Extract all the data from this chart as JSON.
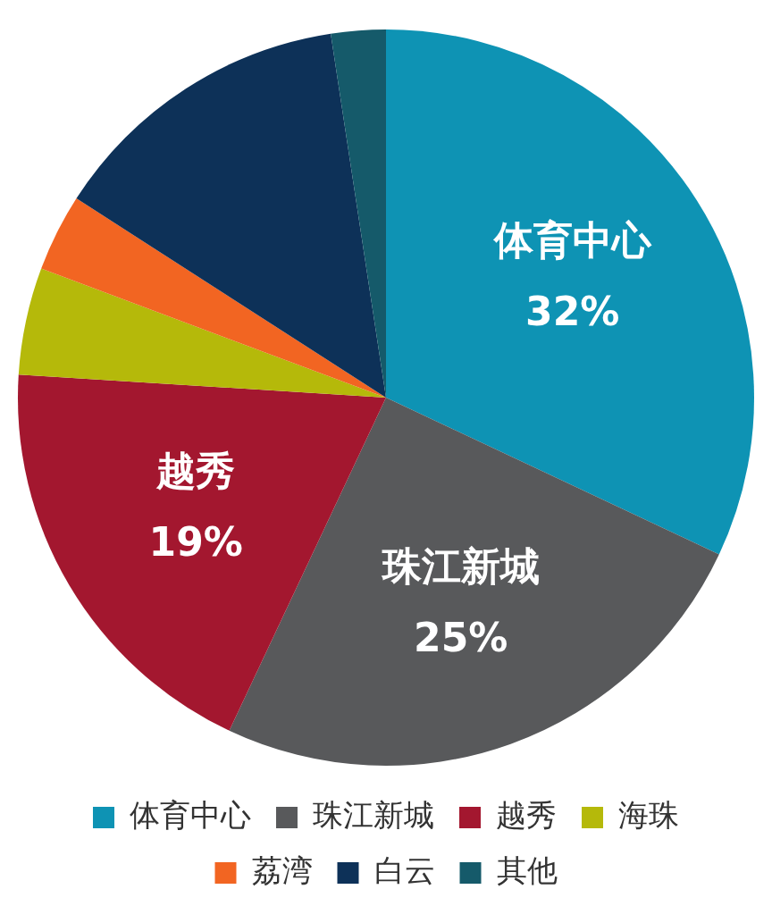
{
  "chart_data": {
    "type": "pie",
    "categories": [
      "体育中心",
      "珠江新城",
      "越秀",
      "海珠",
      "荔湾",
      "白云",
      "其他"
    ],
    "values": [
      32,
      25,
      19,
      4.7,
      3.4,
      13.5,
      2.4
    ],
    "colors": [
      "#0e93b4",
      "#58595b",
      "#a3172f",
      "#b5b90a",
      "#f26522",
      "#0d3158",
      "#155a6a"
    ],
    "value_labels": [
      "32%",
      "25%",
      "19%",
      null,
      null,
      null,
      null
    ],
    "legend": "bottom"
  }
}
